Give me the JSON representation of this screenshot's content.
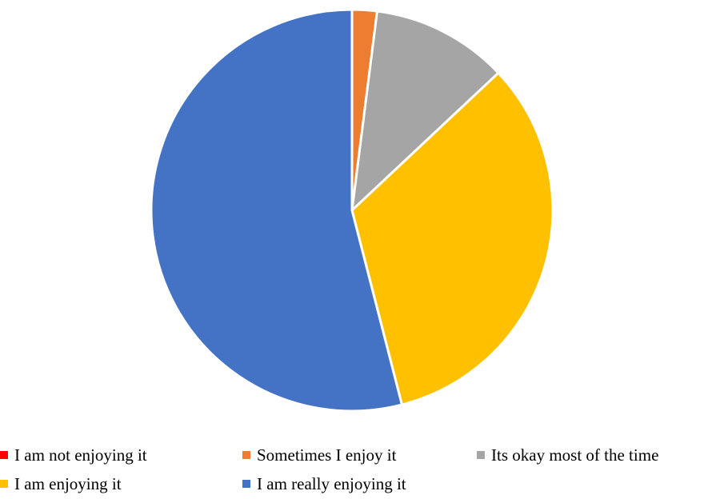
{
  "chart_data": {
    "type": "pie",
    "title": "",
    "legend_position": "bottom",
    "slices": [
      {
        "label": "I am not enjoying it",
        "value": 0,
        "color": "#FF0000"
      },
      {
        "label": "Sometimes I enjoy it",
        "value": 2,
        "color": "#ED7D31"
      },
      {
        "label": "Its okay most of the time",
        "value": 11,
        "color": "#A5A5A5"
      },
      {
        "label": "I am enjoying it",
        "value": 33,
        "color": "#FFC000"
      },
      {
        "label": "I am really enjoying it",
        "value": 54,
        "color": "#4472C4"
      }
    ]
  }
}
